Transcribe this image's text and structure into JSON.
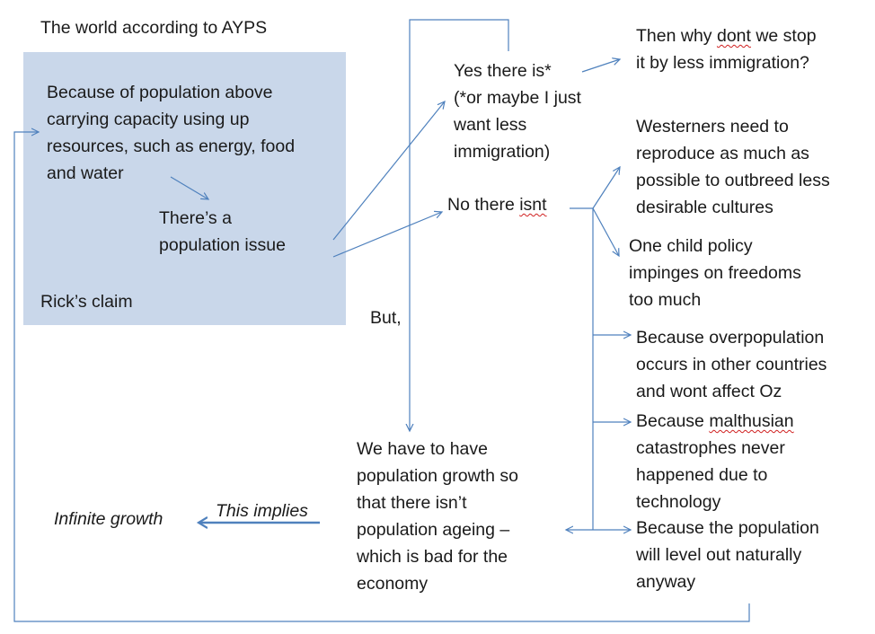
{
  "title": "The world according to AYPS",
  "claim_box": {
    "cause": "Because of population above\ncarrying capacity using up\nresources, such as energy, food\nand water",
    "issue": "There’s a\npopulation issue",
    "label": "Rick’s claim"
  },
  "yes_branch": {
    "text": "Yes there is*\n(*or maybe I just\nwant less\nimmigration)",
    "response_line1_a": "Then why ",
    "response_line1_word": "dont",
    "response_line1_b": " we stop",
    "response_line2": "it by less immigration?"
  },
  "no_branch": {
    "text_a": "No there ",
    "text_word": "isnt",
    "reasons": {
      "outbreed": "Westerners need to\nreproduce as much as\npossible to outbreed less\ndesirable cultures",
      "one_child": "One child policy\nimpinges on freedoms\ntoo much",
      "other_countries": "Because overpopulation\noccurs in other countries\nand wont affect Oz",
      "malthus_a": "Because ",
      "malthus_word": "malthusian",
      "malthus_b": "catastrophes never\nhappened due to\ntechnology",
      "level_out": "Because the population\nwill level out naturally\nanyway"
    }
  },
  "but_label": "But,",
  "growth_text": "We have to have\npopulation growth so\nthat there isn’t\npopulation ageing –\nwhich is bad for the\neconomy",
  "implies_label": "This implies",
  "infinite_growth": "Infinite growth",
  "colors": {
    "box_fill": "#c9d7ea",
    "arrow": "#4f81bd"
  }
}
